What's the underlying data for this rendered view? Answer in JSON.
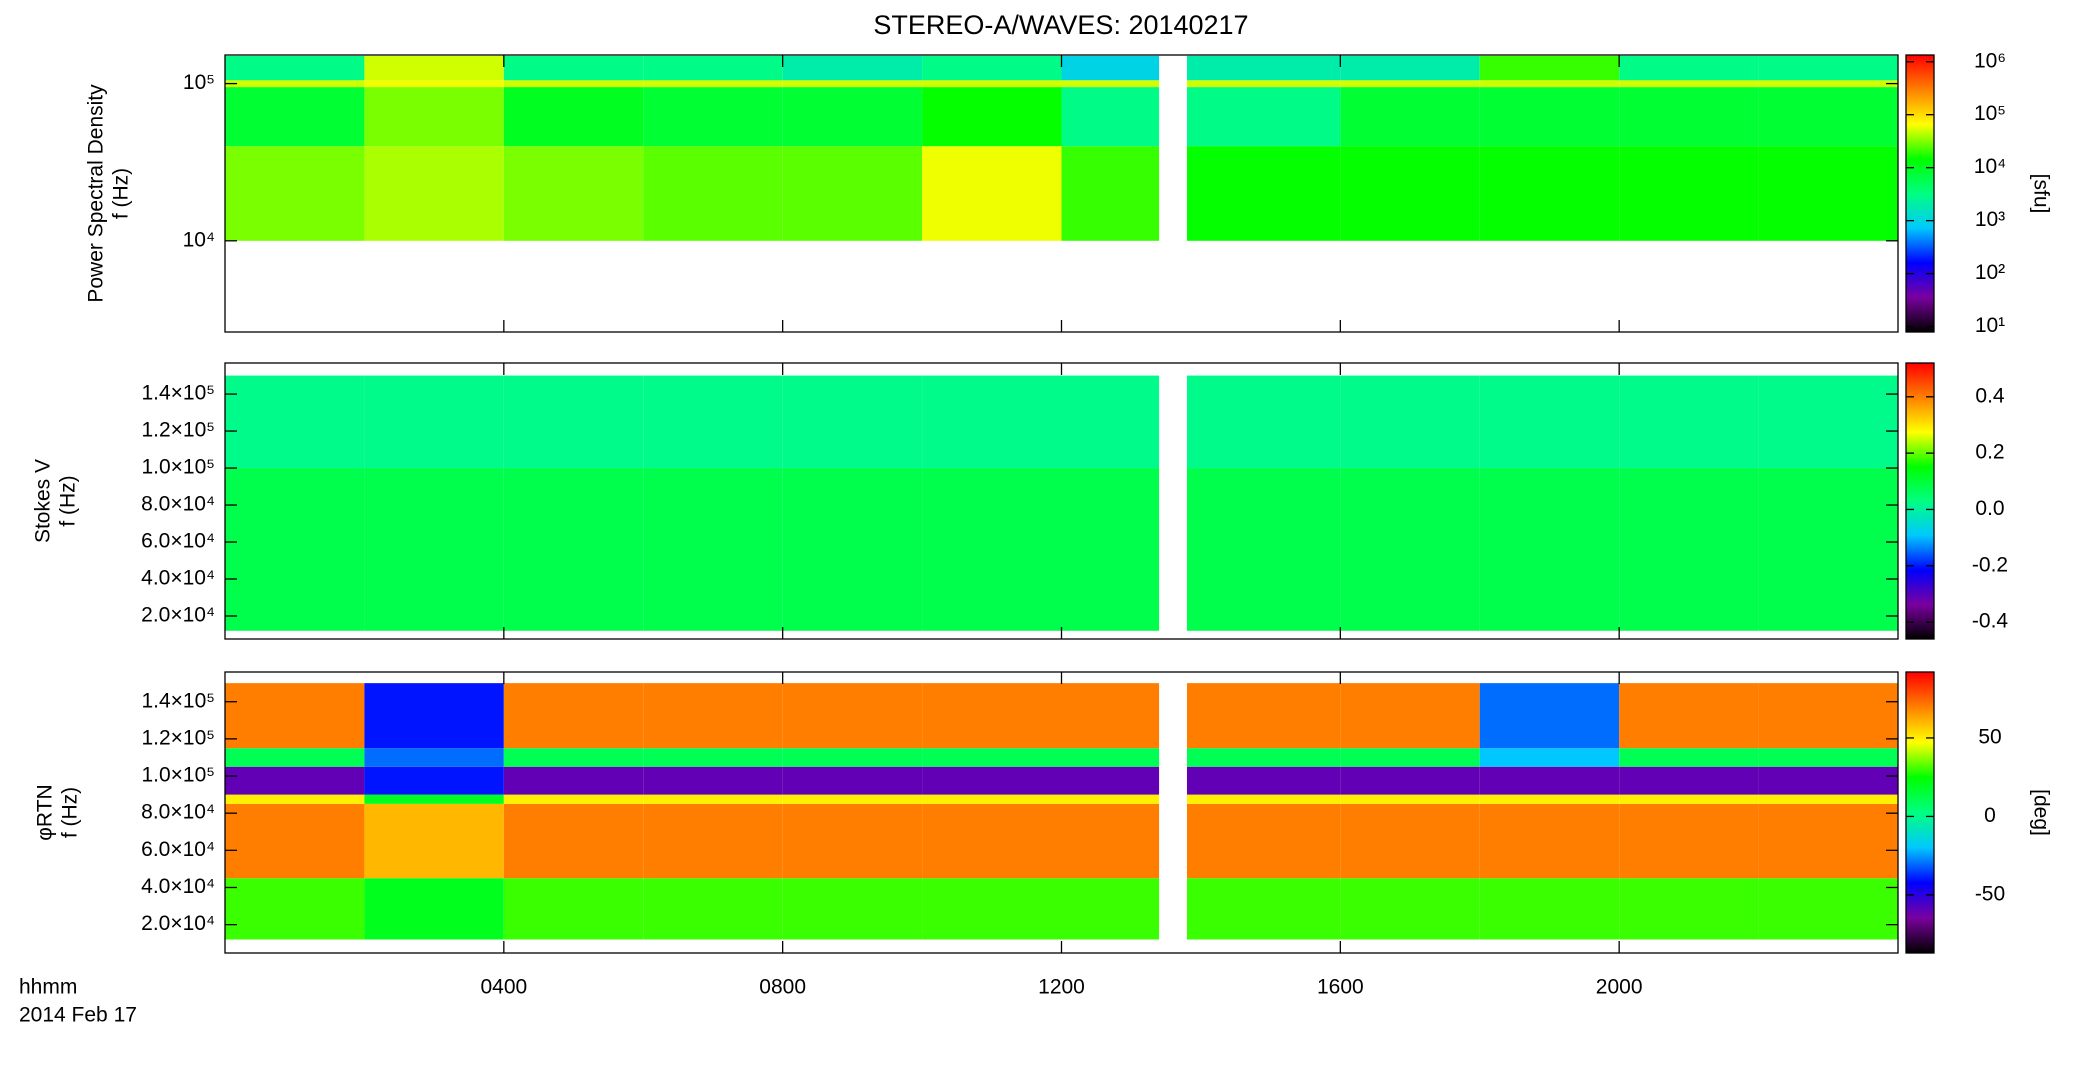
{
  "chart_data": [
    {
      "type": "heatmap",
      "title": "STEREO-A/WAVES: 20140217",
      "ylabel": [
        "Power Spectral Density",
        "f (Hz)"
      ],
      "log": true,
      "xlim": [
        0,
        24
      ],
      "xticks": [
        4,
        8,
        12,
        16,
        20
      ],
      "ylim": [
        2630,
        152000
      ],
      "yticks": [
        {
          "value": 10000,
          "label": "10⁴"
        },
        {
          "value": 100000,
          "label": "10⁵"
        }
      ],
      "xbins": [
        0,
        2,
        4,
        6,
        8,
        10,
        12,
        13.4,
        13.8,
        16,
        18,
        20,
        22,
        24
      ],
      "ybins": [
        10000,
        40000,
        95000,
        105000,
        150000
      ],
      "z": [
        [
          30000,
          40000,
          30000,
          25000,
          25000,
          60000,
          20000,
          null,
          15000,
          15000,
          15000,
          15000,
          15000
        ],
        [
          8000,
          30000,
          10000,
          8000,
          8000,
          15000,
          3000,
          null,
          3000,
          8000,
          8000,
          8000,
          8000
        ],
        [
          50000,
          60000,
          50000,
          50000,
          50000,
          50000,
          50000,
          null,
          50000,
          50000,
          50000,
          50000,
          50000
        ],
        [
          3000,
          50000,
          3000,
          3000,
          2000,
          3000,
          1000,
          null,
          2000,
          2000,
          20000,
          3000,
          3000
        ]
      ],
      "colormap": [
        "#000000",
        "#7a00a0",
        "#0000ff",
        "#00c8ff",
        "#00ff80",
        "#00ff00",
        "#ffff00",
        "#ff8000",
        "#ff0000"
      ],
      "zlog": true,
      "zlim": [
        7.9,
        1340000
      ],
      "zticks": [
        {
          "value": 10,
          "label": "10¹"
        },
        {
          "value": 100,
          "label": "10²"
        },
        {
          "value": 1000,
          "label": "10³"
        },
        {
          "value": 10000,
          "label": "10⁴"
        },
        {
          "value": 100000,
          "label": "10⁵"
        },
        {
          "value": 1000000,
          "label": "10⁶"
        }
      ],
      "zlabel": "[sfu]"
    },
    {
      "type": "heatmap",
      "ylabel": [
        "Stokes V",
        "f (Hz)"
      ],
      "xlim": [
        0,
        24
      ],
      "xticks": [
        4,
        8,
        12,
        16,
        20
      ],
      "ylim": [
        7560,
        156800
      ],
      "yticks": [
        {
          "value": 20000,
          "label": "2.0×10⁴"
        },
        {
          "value": 40000,
          "label": "4.0×10⁴"
        },
        {
          "value": 60000,
          "label": "6.0×10⁴"
        },
        {
          "value": 80000,
          "label": "8.0×10⁴"
        },
        {
          "value": 100000,
          "label": "1.0×10⁵"
        },
        {
          "value": 120000,
          "label": "1.2×10⁵"
        },
        {
          "value": 140000,
          "label": "1.4×10⁵"
        }
      ],
      "xbins": [
        0,
        2,
        4,
        6,
        8,
        10,
        12,
        13.4,
        13.8,
        16,
        18,
        20,
        22,
        24
      ],
      "ybins": [
        12000,
        100000,
        150000
      ],
      "z": [
        [
          0.08,
          0.08,
          0.08,
          0.08,
          0.08,
          0.08,
          0.08,
          null,
          0.08,
          0.08,
          0.08,
          0.08,
          0.08
        ],
        [
          0.02,
          0.02,
          0.02,
          0.02,
          0.02,
          0.02,
          0.02,
          null,
          0.02,
          0.02,
          0.02,
          0.02,
          0.02
        ]
      ],
      "colormap": [
        "#000000",
        "#7a00a0",
        "#0000ff",
        "#00c8ff",
        "#00ff80",
        "#00ff00",
        "#ffff00",
        "#ff8000",
        "#ff0000"
      ],
      "zlim": [
        -0.46,
        0.52
      ],
      "zticks": [
        -0.4,
        -0.2,
        {
          "value": 0,
          "label": "0.0"
        },
        0.2,
        0.4
      ]
    },
    {
      "type": "heatmap",
      "ylabel": [
        "φRTN",
        "f (Hz)"
      ],
      "xlim": [
        0,
        24
      ],
      "xticks": [
        {
          "value": 4,
          "label": "0400"
        },
        {
          "value": 8,
          "label": "0800"
        },
        {
          "value": 12,
          "label": "1200"
        },
        {
          "value": 16,
          "label": "1600"
        },
        {
          "value": 20,
          "label": "2000"
        }
      ],
      "xlabel": [
        "hhmm",
        "2014 Feb 17"
      ],
      "ylim": [
        4730,
        156000
      ],
      "yticks": [
        {
          "value": 20000,
          "label": "2.0×10⁴"
        },
        {
          "value": 40000,
          "label": "4.0×10⁴"
        },
        {
          "value": 60000,
          "label": "6.0×10⁴"
        },
        {
          "value": 80000,
          "label": "8.0×10⁴"
        },
        {
          "value": 100000,
          "label": "1.0×10⁵"
        },
        {
          "value": 120000,
          "label": "1.2×10⁵"
        },
        {
          "value": 140000,
          "label": "1.4×10⁵"
        }
      ],
      "xbins": [
        0,
        2,
        4,
        6,
        8,
        10,
        12,
        13.4,
        13.8,
        16,
        18,
        20,
        22,
        24
      ],
      "ybins": [
        12000,
        45000,
        85000,
        90000,
        105000,
        115000,
        150000
      ],
      "z": [
        [
          30,
          20,
          30,
          30,
          30,
          30,
          30,
          null,
          30,
          30,
          30,
          30,
          30
        ],
        [
          70,
          60,
          70,
          70,
          70,
          70,
          70,
          null,
          70,
          70,
          70,
          70,
          70
        ],
        [
          50,
          20,
          50,
          50,
          50,
          50,
          50,
          null,
          50,
          50,
          50,
          50,
          50
        ],
        [
          -60,
          -40,
          -60,
          -60,
          -60,
          -60,
          -60,
          null,
          -60,
          -60,
          -60,
          -60,
          -60
        ],
        [
          10,
          -30,
          10,
          10,
          10,
          10,
          10,
          null,
          10,
          10,
          -20,
          10,
          10
        ],
        [
          70,
          -40,
          70,
          70,
          70,
          70,
          70,
          null,
          70,
          70,
          -30,
          70,
          70
        ]
      ],
      "colormap": [
        "#000000",
        "#7a00a0",
        "#0000ff",
        "#00c8ff",
        "#00ff80",
        "#00ff00",
        "#ffff00",
        "#ff8000",
        "#ff0000"
      ],
      "zlim": [
        -87,
        92
      ],
      "zticks": [
        -50,
        0,
        50
      ],
      "zlabel": "[deg]"
    }
  ]
}
